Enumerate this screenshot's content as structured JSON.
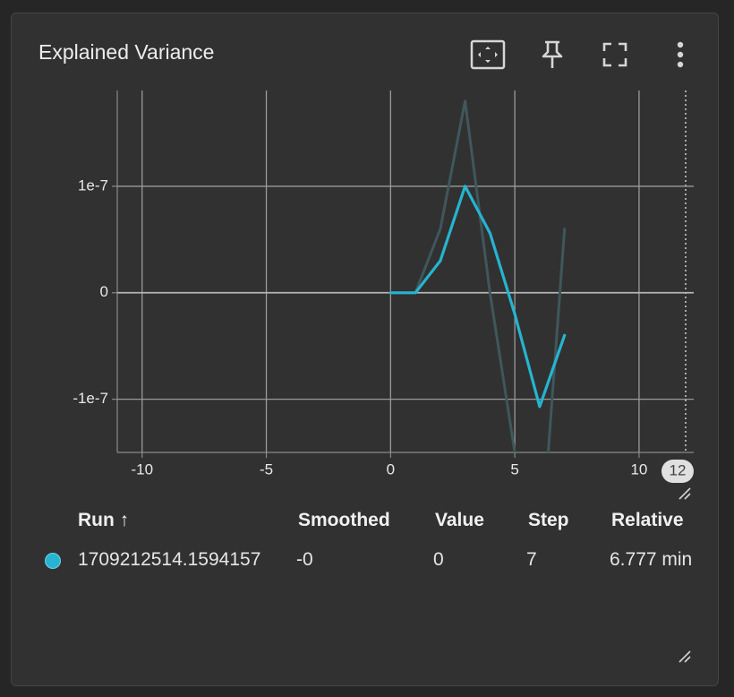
{
  "card": {
    "title": "Explained Variance"
  },
  "toolbar": {
    "fit_icon": "fit-domain-icon",
    "pin_icon": "pin-icon",
    "fullscreen_icon": "fullscreen-icon",
    "more_icon": "more-vert-icon"
  },
  "colors": {
    "run": "#26b4d0",
    "raw": "#3f575c",
    "grid": "#9a9a9a",
    "zero": "#b5b5b5",
    "text": "#e8e8e8"
  },
  "chart_data": {
    "type": "line",
    "title": "Explained Variance",
    "xlabel": "",
    "ylabel": "",
    "xlim": [
      -11,
      12.2
    ],
    "ylim": [
      -1.5e-07,
      1.9e-07
    ],
    "x_ticks": [
      -10,
      -5,
      0,
      5,
      10
    ],
    "x_tick_labels": [
      "-10",
      "-5",
      "0",
      "5",
      "10"
    ],
    "y_ticks": [
      1e-07,
      0,
      -1e-07
    ],
    "y_tick_labels": [
      "1e-7",
      "0",
      "-1e-7"
    ],
    "x_edge_label": "12",
    "grid": true,
    "series": [
      {
        "style": "raw",
        "x": [
          0,
          1,
          2,
          3,
          4,
          5,
          6,
          7
        ],
        "y": [
          0,
          0,
          6e-08,
          1.8e-07,
          0,
          -1.5e-07,
          -2.6e-07,
          6e-08
        ]
      },
      {
        "style": "smoothed",
        "x": [
          0,
          1,
          2,
          3,
          4,
          5,
          6,
          7
        ],
        "y": [
          0,
          0,
          3e-08,
          1e-07,
          5.6e-08,
          -2e-08,
          -1.07e-07,
          -4e-08
        ]
      }
    ]
  },
  "table": {
    "headers": {
      "run": "Run ↑",
      "smoothed": "Smoothed",
      "value": "Value",
      "step": "Step",
      "relative": "Relative"
    },
    "rows": [
      {
        "run": "1709212514.1594157",
        "smoothed": "-0",
        "value": "0",
        "step": "7",
        "relative": "6.777 min"
      }
    ]
  }
}
